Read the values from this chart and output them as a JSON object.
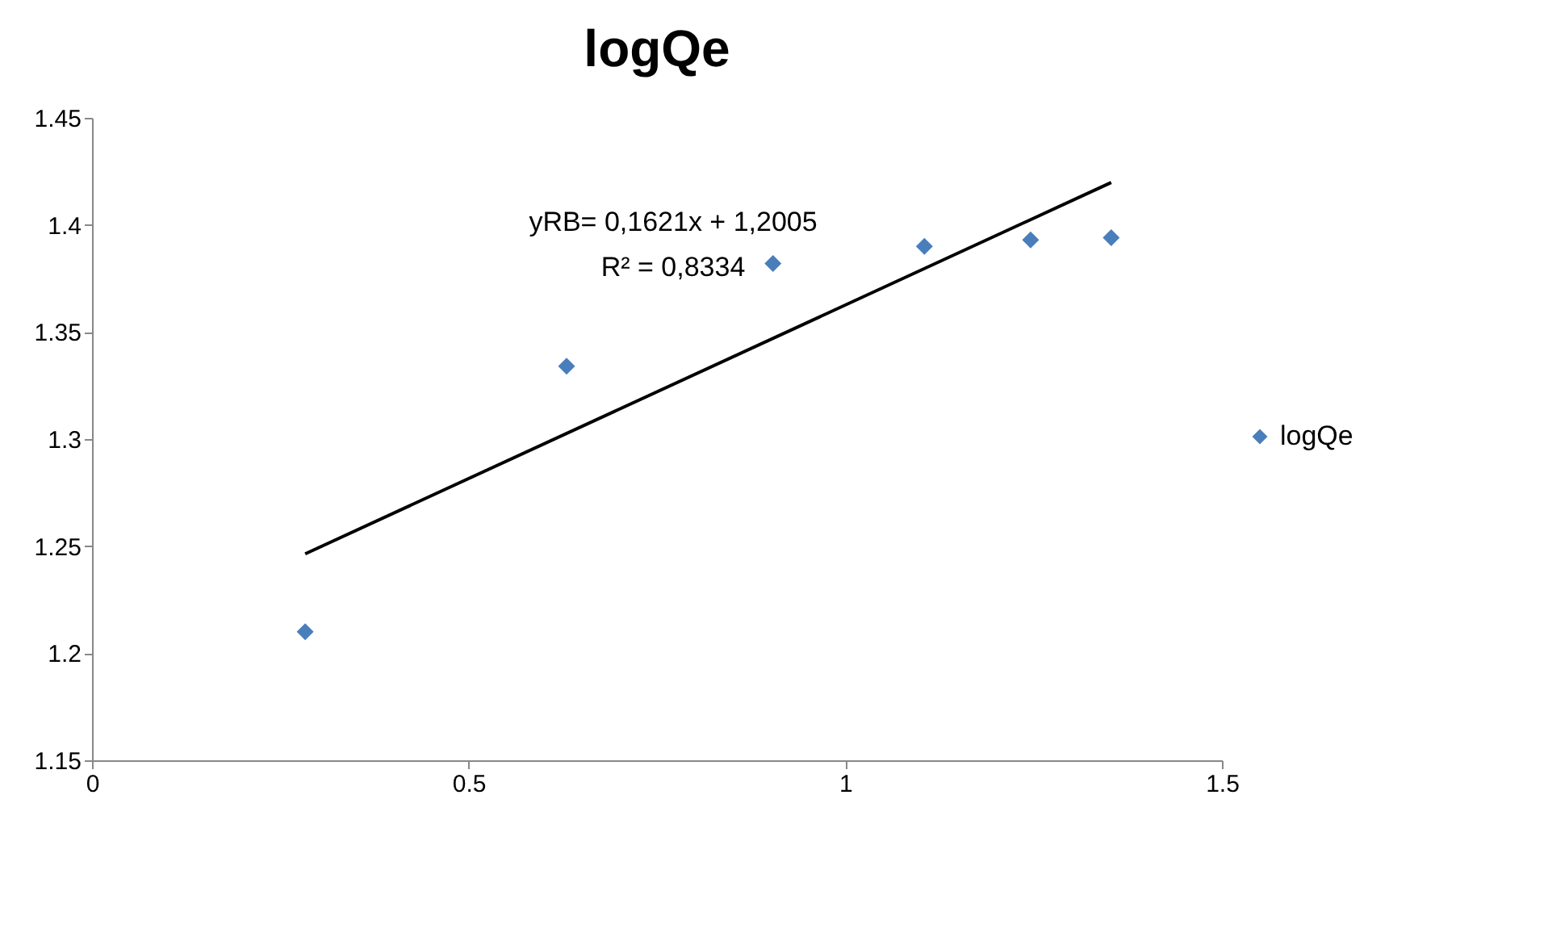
{
  "chart_data": {
    "type": "scatter",
    "title": "logQe",
    "x": [
      0.283,
      0.63,
      0.904,
      1.105,
      1.246,
      1.353
    ],
    "series": [
      {
        "name": "logQe",
        "color": "#4a7ebb",
        "values": [
          1.21,
          1.334,
          1.382,
          1.39,
          1.393,
          1.394
        ],
        "marker": "diamond"
      },
      {
        "type": "line",
        "color": "#000000",
        "x": [
          0.283,
          1.353
        ],
        "values": [
          1.2464,
          1.4198
        ]
      }
    ],
    "annotations": [
      "yRB= 0,1621x + 1,2005",
      "R² = 0,8334"
    ],
    "xlim": [
      0,
      1.5
    ],
    "xticks": [
      0,
      0.5,
      1,
      1.5
    ],
    "ylim": [
      1.15,
      1.45
    ],
    "yticks": [
      1.15,
      1.2,
      1.25,
      1.3,
      1.35,
      1.4,
      1.45
    ],
    "grid": false,
    "legend": "right"
  }
}
